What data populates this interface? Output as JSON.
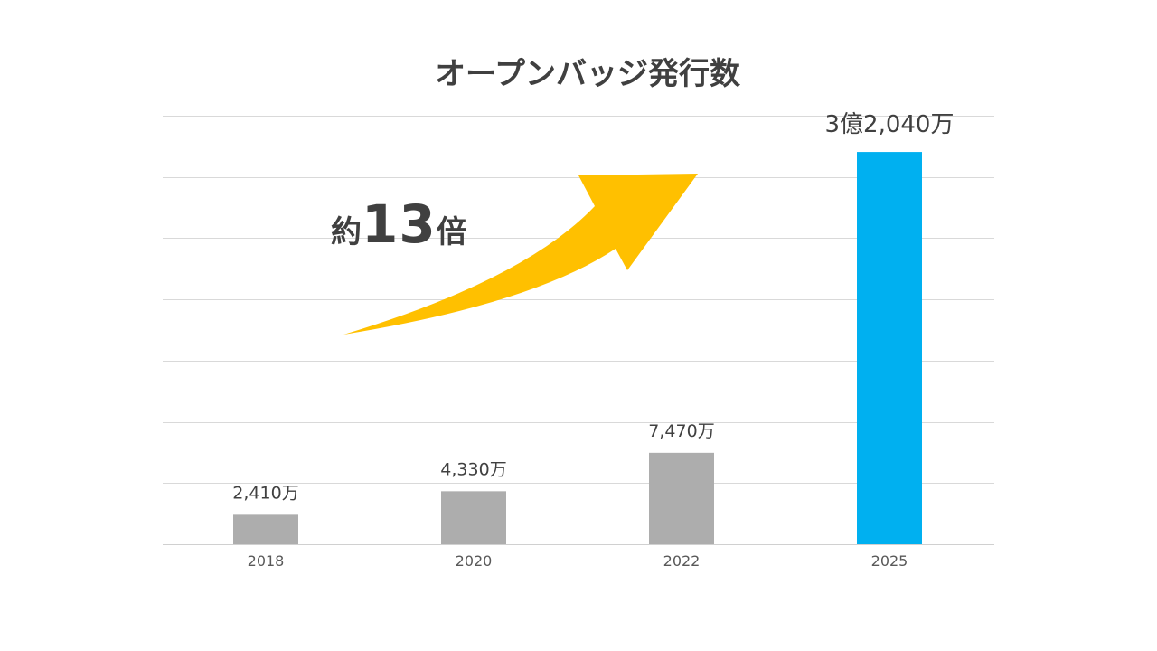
{
  "chart_data": {
    "type": "bar",
    "title": "オープンバッジ発行数",
    "xlabel": "",
    "ylabel": "",
    "ylim": [
      0,
      350000000
    ],
    "grid": true,
    "categories": [
      "2018",
      "2020",
      "2022",
      "2025"
    ],
    "values": [
      24100000,
      43300000,
      74700000,
      320400000
    ],
    "data_labels": [
      "2,410万",
      "4,330万",
      "7,470万",
      "3億2,040万"
    ],
    "bar_colors": [
      "#adadad",
      "#adadad",
      "#adadad",
      "#00b0f0"
    ],
    "annotation": {
      "prefix": "約",
      "number": "13",
      "suffix": "倍",
      "arrow_color": "#ffc000"
    }
  }
}
